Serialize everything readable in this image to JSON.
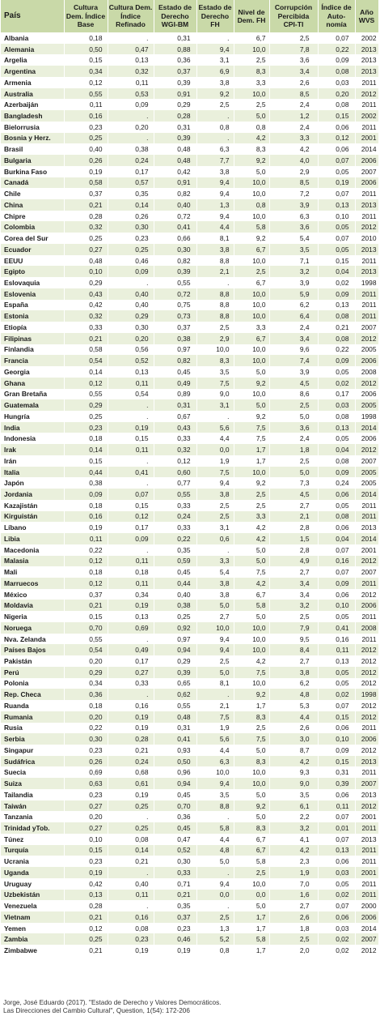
{
  "headers": {
    "pais": "País",
    "cultura_base": "Cultura Dem. Índice Base",
    "cultura_refinado": "Cultura Dem. Índice Refinado",
    "estado_wgi": "Estado de Derecho WGI-BM",
    "estado_fh": "Estado de Derecho FH",
    "nivel_dem": "Nivel de Dem. FH",
    "corrupcion": "Corrupción Percibida CPI-TI",
    "autonomia": "Índice de Auto-nomía",
    "wvs": "Año WVS"
  },
  "rows": [
    [
      "Albania",
      "0,18",
      ".",
      "0,31",
      ".",
      "6,7",
      "2,5",
      "0,07",
      "2002"
    ],
    [
      "Alemania",
      "0,50",
      "0,47",
      "0,88",
      "9,4",
      "10,0",
      "7,8",
      "0,22",
      "2013"
    ],
    [
      "Argelia",
      "0,15",
      "0,13",
      "0,36",
      "3,1",
      "2,5",
      "3,6",
      "0,09",
      "2013"
    ],
    [
      "Argentina",
      "0,34",
      "0,32",
      "0,37",
      "6,9",
      "8,3",
      "3,4",
      "0,08",
      "2013"
    ],
    [
      "Armenia",
      "0,12",
      "0,11",
      "0,39",
      "3,8",
      "3,3",
      "2,6",
      "0,03",
      "2011"
    ],
    [
      "Australia",
      "0,55",
      "0,53",
      "0,91",
      "9,2",
      "10,0",
      "8,5",
      "0,20",
      "2012"
    ],
    [
      "Azerbaiján",
      "0,11",
      "0,09",
      "0,29",
      "2,5",
      "2,5",
      "2,4",
      "0,08",
      "2011"
    ],
    [
      "Bangladesh",
      "0,16",
      ".",
      "0,28",
      ".",
      "5,0",
      "1,2",
      "0,15",
      "2002"
    ],
    [
      "Bielorrusia",
      "0,23",
      "0,20",
      "0,31",
      "0,8",
      "0,8",
      "2,4",
      "0,06",
      "2011"
    ],
    [
      "Bosnia y Herz.",
      "0,25",
      ".",
      "0,39",
      ".",
      "4,2",
      "3,3",
      "0,12",
      "2001"
    ],
    [
      "Brasil",
      "0,40",
      "0,38",
      "0,48",
      "6,3",
      "8,3",
      "4,2",
      "0,06",
      "2014"
    ],
    [
      "Bulgaria",
      "0,26",
      "0,24",
      "0,48",
      "7,7",
      "9,2",
      "4,0",
      "0,07",
      "2006"
    ],
    [
      "Burkina Faso",
      "0,19",
      "0,17",
      "0,42",
      "3,8",
      "5,0",
      "2,9",
      "0,05",
      "2007"
    ],
    [
      "Canadá",
      "0,58",
      "0,57",
      "0,91",
      "9,4",
      "10,0",
      "8,5",
      "0,19",
      "2006"
    ],
    [
      "Chile",
      "0,37",
      "0,35",
      "0,82",
      "9,4",
      "10,0",
      "7,2",
      "0,07",
      "2011"
    ],
    [
      "China",
      "0,21",
      "0,14",
      "0,40",
      "1,3",
      "0,8",
      "3,9",
      "0,13",
      "2013"
    ],
    [
      "Chipre",
      "0,28",
      "0,26",
      "0,72",
      "9,4",
      "10,0",
      "6,3",
      "0,10",
      "2011"
    ],
    [
      "Colombia",
      "0,32",
      "0,30",
      "0,41",
      "4,4",
      "5,8",
      "3,6",
      "0,05",
      "2012"
    ],
    [
      "Corea del Sur",
      "0,25",
      "0,23",
      "0,66",
      "8,1",
      "9,2",
      "5,4",
      "0,07",
      "2010"
    ],
    [
      "Ecuador",
      "0,27",
      "0,25",
      "0,30",
      "3,8",
      "6,7",
      "3,5",
      "0,05",
      "2013"
    ],
    [
      "EEUU",
      "0,48",
      "0,46",
      "0,82",
      "8,8",
      "10,0",
      "7,1",
      "0,15",
      "2011"
    ],
    [
      "Egipto",
      "0,10",
      "0,09",
      "0,39",
      "2,1",
      "2,5",
      "3,2",
      "0,04",
      "2013"
    ],
    [
      "Eslovaquia",
      "0,29",
      ".",
      "0,55",
      ".",
      "6,7",
      "3,9",
      "0,02",
      "1998"
    ],
    [
      "Eslovenia",
      "0,43",
      "0,40",
      "0,72",
      "8,8",
      "10,0",
      "5,9",
      "0,09",
      "2011"
    ],
    [
      "España",
      "0,42",
      "0,40",
      "0,75",
      "8,8",
      "10,0",
      "6,2",
      "0,13",
      "2011"
    ],
    [
      "Estonia",
      "0,32",
      "0,29",
      "0,73",
      "8,8",
      "10,0",
      "6,4",
      "0,08",
      "2011"
    ],
    [
      "Etiopía",
      "0,33",
      "0,30",
      "0,37",
      "2,5",
      "3,3",
      "2,4",
      "0,21",
      "2007"
    ],
    [
      "Filipinas",
      "0,21",
      "0,20",
      "0,38",
      "2,9",
      "6,7",
      "3,4",
      "0,08",
      "2012"
    ],
    [
      "Finlandia",
      "0,58",
      "0,56",
      "0,97",
      "10,0",
      "10,0",
      "9,6",
      "0,22",
      "2005"
    ],
    [
      "Francia",
      "0,54",
      "0,52",
      "0,82",
      "8,3",
      "10,0",
      "7,4",
      "0,09",
      "2006"
    ],
    [
      "Georgia",
      "0,14",
      "0,13",
      "0,45",
      "3,5",
      "5,0",
      "3,9",
      "0,05",
      "2008"
    ],
    [
      "Ghana",
      "0,12",
      "0,11",
      "0,49",
      "7,5",
      "9,2",
      "4,5",
      "0,02",
      "2012"
    ],
    [
      "Gran Bretaña",
      "0,55",
      "0,54",
      "0,89",
      "9,0",
      "10,0",
      "8,6",
      "0,17",
      "2006"
    ],
    [
      "Guatemala",
      "0,29",
      ".",
      "0,31",
      "3,1",
      "5,0",
      "2,5",
      "0,03",
      "2005"
    ],
    [
      "Hungría",
      "0,25",
      ".",
      "0,67",
      ".",
      "9,2",
      "5,0",
      "0,08",
      "1998"
    ],
    [
      "India",
      "0,23",
      "0,19",
      "0,43",
      "5,6",
      "7,5",
      "3,6",
      "0,13",
      "2014"
    ],
    [
      "Indonesia",
      "0,18",
      "0,15",
      "0,33",
      "4,4",
      "7,5",
      "2,4",
      "0,05",
      "2006"
    ],
    [
      "Irak",
      "0,14",
      "0,11",
      "0,32",
      "0,0",
      "1,7",
      "1,8",
      "0,04",
      "2012"
    ],
    [
      "Irán",
      "0,15",
      ".",
      "0,12",
      "1,9",
      "1,7",
      "2,5",
      "0,08",
      "2007"
    ],
    [
      "Italia",
      "0,44",
      "0,41",
      "0,60",
      "7,5",
      "10,0",
      "5,0",
      "0,09",
      "2005"
    ],
    [
      "Japón",
      "0,38",
      ".",
      "0,77",
      "9,4",
      "9,2",
      "7,3",
      "0,24",
      "2005"
    ],
    [
      "Jordania",
      "0,09",
      "0,07",
      "0,55",
      "3,8",
      "2,5",
      "4,5",
      "0,06",
      "2014"
    ],
    [
      "Kazajistán",
      "0,18",
      "0,15",
      "0,33",
      "2,5",
      "2,5",
      "2,7",
      "0,05",
      "2011"
    ],
    [
      "Kirguistán",
      "0,16",
      "0,12",
      "0,24",
      "2,5",
      "3,3",
      "2,1",
      "0,08",
      "2011"
    ],
    [
      "Líbano",
      "0,19",
      "0,17",
      "0,33",
      "3,1",
      "4,2",
      "2,8",
      "0,06",
      "2013"
    ],
    [
      "Libia",
      "0,11",
      "0,09",
      "0,22",
      "0,6",
      "4,2",
      "1,5",
      "0,04",
      "2014"
    ],
    [
      "Macedonia",
      "0,22",
      ".",
      "0,35",
      ".",
      "5,0",
      "2,8",
      "0,07",
      "2001"
    ],
    [
      "Malasia",
      "0,12",
      "0,11",
      "0,59",
      "3,3",
      "5,0",
      "4,9",
      "0,16",
      "2012"
    ],
    [
      "Mali",
      "0,18",
      "0,18",
      "0,45",
      "5,4",
      "7,5",
      "2,7",
      "0,07",
      "2007"
    ],
    [
      "Marruecos",
      "0,12",
      "0,11",
      "0,44",
      "3,8",
      "4,2",
      "3,4",
      "0,09",
      "2011"
    ],
    [
      "México",
      "0,37",
      "0,34",
      "0,40",
      "3,8",
      "6,7",
      "3,4",
      "0,06",
      "2012"
    ],
    [
      "Moldavia",
      "0,21",
      "0,19",
      "0,38",
      "5,0",
      "5,8",
      "3,2",
      "0,10",
      "2006"
    ],
    [
      "Nigeria",
      "0,15",
      "0,13",
      "0,25",
      "2,7",
      "5,0",
      "2,5",
      "0,05",
      "2011"
    ],
    [
      "Noruega",
      "0,70",
      "0,69",
      "0,92",
      "10,0",
      "10,0",
      "7,9",
      "0,41",
      "2008"
    ],
    [
      "Nva. Zelanda",
      "0,55",
      ".",
      "0,97",
      "9,4",
      "10,0",
      "9,5",
      "0,16",
      "2011"
    ],
    [
      "Países Bajos",
      "0,54",
      "0,49",
      "0,94",
      "9,4",
      "10,0",
      "8,4",
      "0,11",
      "2012"
    ],
    [
      "Pakistán",
      "0,20",
      "0,17",
      "0,29",
      "2,5",
      "4,2",
      "2,7",
      "0,13",
      "2012"
    ],
    [
      "Perú",
      "0,29",
      "0,27",
      "0,39",
      "5,0",
      "7,5",
      "3,8",
      "0,05",
      "2012"
    ],
    [
      "Polonia",
      "0,34",
      "0,33",
      "0,65",
      "8,1",
      "10,0",
      "6,2",
      "0,05",
      "2012"
    ],
    [
      "Rep. Checa",
      "0,36",
      ".",
      "0,62",
      ".",
      "9,2",
      "4,8",
      "0,02",
      "1998"
    ],
    [
      "Ruanda",
      "0,18",
      "0,16",
      "0,55",
      "2,1",
      "1,7",
      "5,3",
      "0,07",
      "2012"
    ],
    [
      "Rumania",
      "0,20",
      "0,19",
      "0,48",
      "7,5",
      "8,3",
      "4,4",
      "0,15",
      "2012"
    ],
    [
      "Rusia",
      "0,22",
      "0,19",
      "0,31",
      "1,9",
      "2,5",
      "2,6",
      "0,06",
      "2011"
    ],
    [
      "Serbia",
      "0,30",
      "0,28",
      "0,41",
      "5,6",
      "7,5",
      "3,0",
      "0,10",
      "2006"
    ],
    [
      "Singapur",
      "0,23",
      "0,21",
      "0,93",
      "4,4",
      "5,0",
      "8,7",
      "0,09",
      "2012"
    ],
    [
      "Sudáfrica",
      "0,26",
      "0,24",
      "0,50",
      "6,3",
      "8,3",
      "4,2",
      "0,15",
      "2013"
    ],
    [
      "Suecia",
      "0,69",
      "0,68",
      "0,96",
      "10,0",
      "10,0",
      "9,3",
      "0,31",
      "2011"
    ],
    [
      "Suiza",
      "0,63",
      "0,61",
      "0,94",
      "9,4",
      "10,0",
      "9,0",
      "0,39",
      "2007"
    ],
    [
      "Tailandia",
      "0,23",
      "0,19",
      "0,45",
      "3,5",
      "5,0",
      "3,5",
      "0,06",
      "2013"
    ],
    [
      "Taiwán",
      "0,27",
      "0,25",
      "0,70",
      "8,8",
      "9,2",
      "6,1",
      "0,11",
      "2012"
    ],
    [
      "Tanzania",
      "0,20",
      ".",
      "0,36",
      ".",
      "5,0",
      "2,2",
      "0,07",
      "2001"
    ],
    [
      "Trinidad yTob.",
      "0,27",
      "0,25",
      "0,45",
      "5,8",
      "8,3",
      "3,2",
      "0,01",
      "2011"
    ],
    [
      "Túnez",
      "0,10",
      "0,08",
      "0,47",
      "4,4",
      "6,7",
      "4,1",
      "0,07",
      "2013"
    ],
    [
      "Turquía",
      "0,15",
      "0,14",
      "0,52",
      "4,8",
      "6,7",
      "4,2",
      "0,13",
      "2011"
    ],
    [
      "Ucrania",
      "0,23",
      "0,21",
      "0,30",
      "5,0",
      "5,8",
      "2,3",
      "0,06",
      "2011"
    ],
    [
      "Uganda",
      "0,19",
      ".",
      "0,33",
      ".",
      "2,5",
      "1,9",
      "0,03",
      "2001"
    ],
    [
      "Uruguay",
      "0,42",
      "0,40",
      "0,71",
      "9,4",
      "10,0",
      "7,0",
      "0,05",
      "2011"
    ],
    [
      "Uzbekistán",
      "0,13",
      "0,11",
      "0,21",
      "0,0",
      "0,0",
      "1,6",
      "0,02",
      "2011"
    ],
    [
      "Venezuela",
      "0,28",
      ".",
      "0,35",
      ".",
      "5,0",
      "2,7",
      "0,07",
      "2000"
    ],
    [
      "Vietnam",
      "0,21",
      "0,16",
      "0,37",
      "2,5",
      "1,7",
      "2,6",
      "0,06",
      "2006"
    ],
    [
      "Yemen",
      "0,12",
      "0,08",
      "0,23",
      "1,3",
      "1,7",
      "1,8",
      "0,03",
      "2014"
    ],
    [
      "Zambia",
      "0,25",
      "0,23",
      "0,46",
      "5,2",
      "5,8",
      "2,5",
      "0,02",
      "2007"
    ],
    [
      "Zimbabwe",
      "0,21",
      "0,19",
      "0,19",
      "0,8",
      "1,7",
      "2,0",
      "0,02",
      "2012"
    ]
  ],
  "source": {
    "line1": "Jorge, José Eduardo (2017). \"Estado de Derecho y Valores Democráticos.",
    "line2": "Las Direcciones del Cambio Cultural\", Question, 1(54): 172-206"
  },
  "colors": {
    "header_bg": "#c9d9a8",
    "stripe_bg": "#eaf0dc"
  }
}
